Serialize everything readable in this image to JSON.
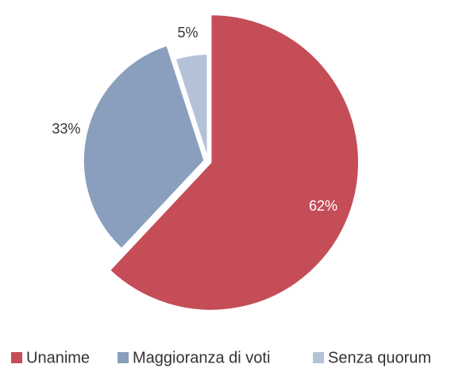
{
  "chart_data": {
    "type": "pie",
    "categories": [
      "Unanime",
      "Maggioranza di voti",
      "Senza quorum"
    ],
    "values": [
      62,
      33,
      5
    ],
    "value_labels": [
      "62%",
      "33%",
      "5%"
    ],
    "colors": [
      "#c44d58",
      "#8a9fbd",
      "#b4c2d8"
    ],
    "legend": "bottom"
  }
}
